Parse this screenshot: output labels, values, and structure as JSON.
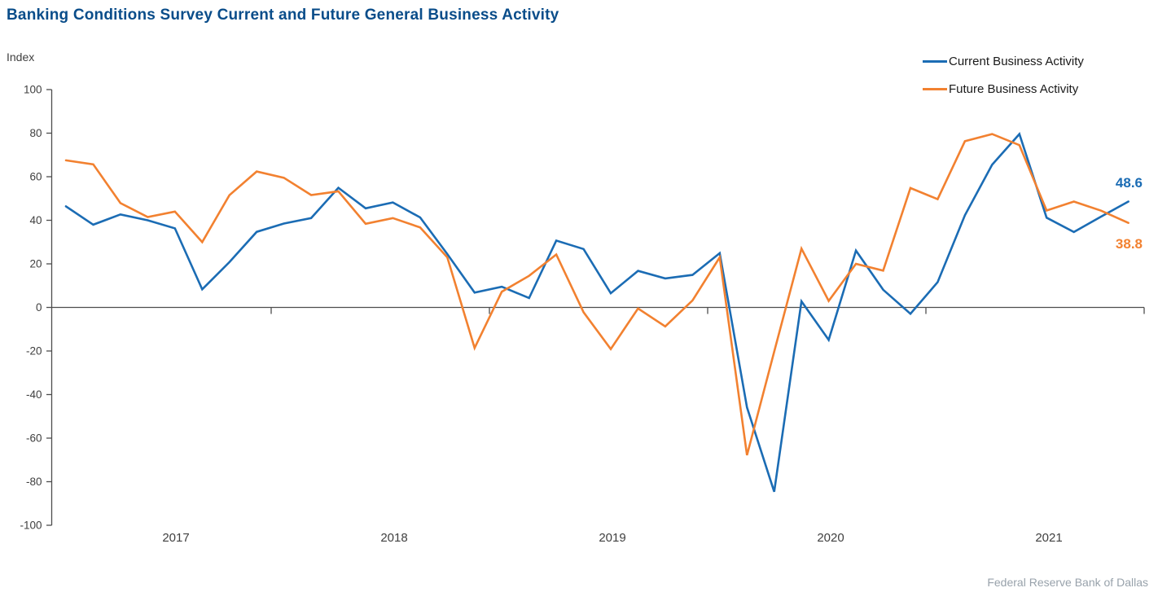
{
  "title": "Banking Conditions Survey Current and Future General Business Activity",
  "y_axis_label": "Index",
  "footer": "Federal Reserve Bank of Dallas",
  "colors": {
    "current": "#1b6cb4",
    "future": "#f28130",
    "title": "#0a4d8a",
    "axis": "#4d4d4d",
    "tick_text": "#404040",
    "footer_text": "#98a2ab"
  },
  "legend": [
    {
      "label": "Current Business Activity",
      "series_key": "current"
    },
    {
      "label": "Future Business Activity",
      "series_key": "future"
    }
  ],
  "end_labels": {
    "current": "48.6",
    "future": "38.8"
  },
  "chart_data": {
    "type": "line",
    "title": "Banking Conditions Survey Current and Future General Business Activity",
    "xlabel": "",
    "ylabel": "Index",
    "ylim": [
      -100,
      100
    ],
    "y_ticks": [
      100,
      80,
      60,
      40,
      20,
      0,
      -20,
      -40,
      -60,
      -80,
      -100
    ],
    "year_ticks": [
      "2017",
      "2018",
      "2019",
      "2020",
      "2021"
    ],
    "points_per_year": 8,
    "x_description": "40 survey observations, 8 per year, 2017 through 2021",
    "grid": false,
    "legend_position": "top-right",
    "series": [
      {
        "name": "Current Business Activity",
        "key": "current",
        "last_value_label": "48.6",
        "values": [
          46.4,
          38.0,
          42.7,
          40.0,
          36.3,
          8.3,
          20.8,
          34.7,
          38.5,
          41.0,
          54.9,
          45.5,
          48.2,
          41.3,
          24.5,
          6.8,
          9.5,
          4.3,
          30.7,
          26.8,
          6.5,
          16.8,
          13.3,
          14.9,
          24.9,
          -45.9,
          -84.6,
          2.8,
          -14.9,
          26.1,
          8.1,
          -2.9,
          11.6,
          42.3,
          65.5,
          79.6,
          41.2,
          34.6,
          41.7,
          48.6
        ]
      },
      {
        "name": "Future Business Activity",
        "key": "future",
        "last_value_label": "38.8",
        "values": [
          67.5,
          65.7,
          47.9,
          41.5,
          44.0,
          30.0,
          51.5,
          62.4,
          59.5,
          51.6,
          53.3,
          38.4,
          41.0,
          36.7,
          23.0,
          -18.6,
          7.2,
          14.5,
          24.3,
          -2.2,
          -19.1,
          -0.5,
          -8.7,
          3.2,
          23.0,
          -67.8,
          -20.3,
          27.0,
          3.0,
          20.0,
          16.9,
          54.8,
          49.7,
          76.3,
          79.6,
          74.5,
          44.5,
          48.6,
          44.4,
          38.8
        ]
      }
    ]
  }
}
